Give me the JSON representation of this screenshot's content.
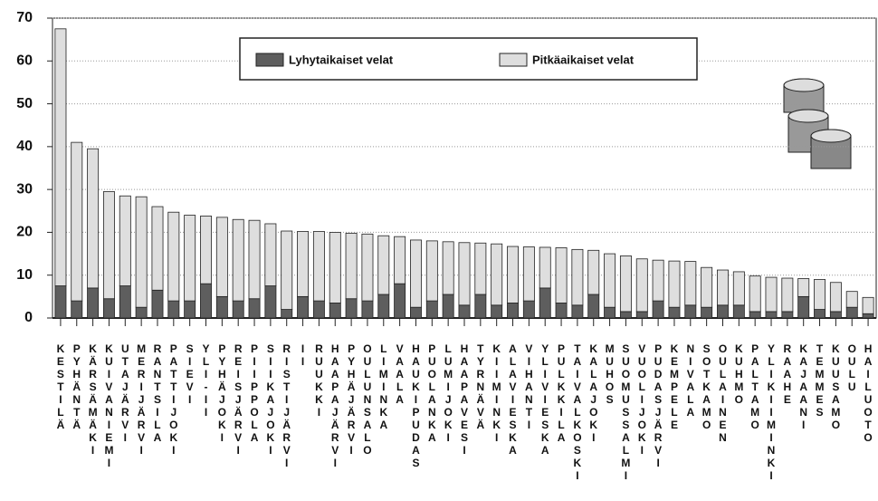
{
  "chart_data": {
    "type": "stacked_bar",
    "categories": [
      "KESTILÄ",
      "PYHÄNTÄ",
      "KÄRSÄMÄKI",
      "KUIVANIEMI",
      "UTAJÄRVI",
      "MERIJÄRVI",
      "RANTSILA",
      "PATTIJOKI",
      "SIEVI",
      "YLI-II",
      "PYHÄJOKI",
      "REISJÄRVI",
      "PIIPPOLA",
      "SIIKAJOKI",
      "RISTIJÄRVI",
      "II",
      "RUUKKI",
      "HAAPAJÄRVI",
      "PYHÄJÄRVI",
      "OULUNSALO",
      "LIMINKA",
      "VAALA",
      "HAUKIPUDAS",
      "PUOLANKA",
      "LUMIJOKI",
      "HAAPAVESI",
      "TYRNÄVÄ",
      "KIIMINKI",
      "ALAVIESKA",
      "VIHANTI",
      "YLIVIESKA",
      "PULKKILA",
      "TAIVALKOSKI",
      "KALAJOKI",
      "MUHOS",
      "SUOMUSSALMI",
      "VUOLIJOKI",
      "PUDASJÄRVI",
      "KEMPELE",
      "NIVALA",
      "SOTKAMO",
      "OULAINEN",
      "KUHMO",
      "PALTAMO",
      "YLIKIIMINKI",
      "RAAHE",
      "KAJAANI",
      "TEMMES",
      "KUUSAMO",
      "OULU",
      "HAILUOTO"
    ],
    "series": [
      {
        "name": "Lyhytaikaiset velat",
        "color": "#5e5e5e",
        "values": [
          7.5,
          4,
          7,
          4.5,
          7.5,
          2.5,
          6.5,
          4,
          4,
          8,
          5,
          4,
          4.5,
          7.5,
          2,
          5,
          4,
          3.5,
          4.5,
          4,
          5.5,
          8,
          2.5,
          4,
          5.5,
          3,
          5.5,
          3,
          3.5,
          4,
          7,
          3.5,
          3,
          5.5,
          2.5,
          1.5,
          1.5,
          4,
          2.5,
          3,
          2.5,
          3,
          3,
          1.5,
          1.5,
          1.5,
          5,
          2,
          1.5,
          2.5,
          1
        ]
      },
      {
        "name": "Pitkäaikaiset velat",
        "color": "#dedede",
        "values": [
          60,
          37,
          32.5,
          25,
          21,
          25.8,
          19.5,
          20.7,
          20,
          15.8,
          18.5,
          19,
          18.3,
          14.5,
          18.3,
          15.2,
          16.2,
          16.5,
          15.3,
          15.6,
          13.7,
          11,
          15.7,
          14,
          12.3,
          14.6,
          12,
          14.3,
          13.2,
          12.6,
          9.5,
          12.9,
          13,
          10.3,
          12.5,
          13,
          12.3,
          9.5,
          10.8,
          10.2,
          9.3,
          8.2,
          7.8,
          8.3,
          8,
          7.8,
          4.2,
          7,
          6.8,
          3.7,
          3.8
        ]
      }
    ],
    "ylim": [
      0,
      70
    ],
    "yticks": [
      0,
      10,
      20,
      30,
      40,
      50,
      60,
      70
    ],
    "grid": true
  }
}
